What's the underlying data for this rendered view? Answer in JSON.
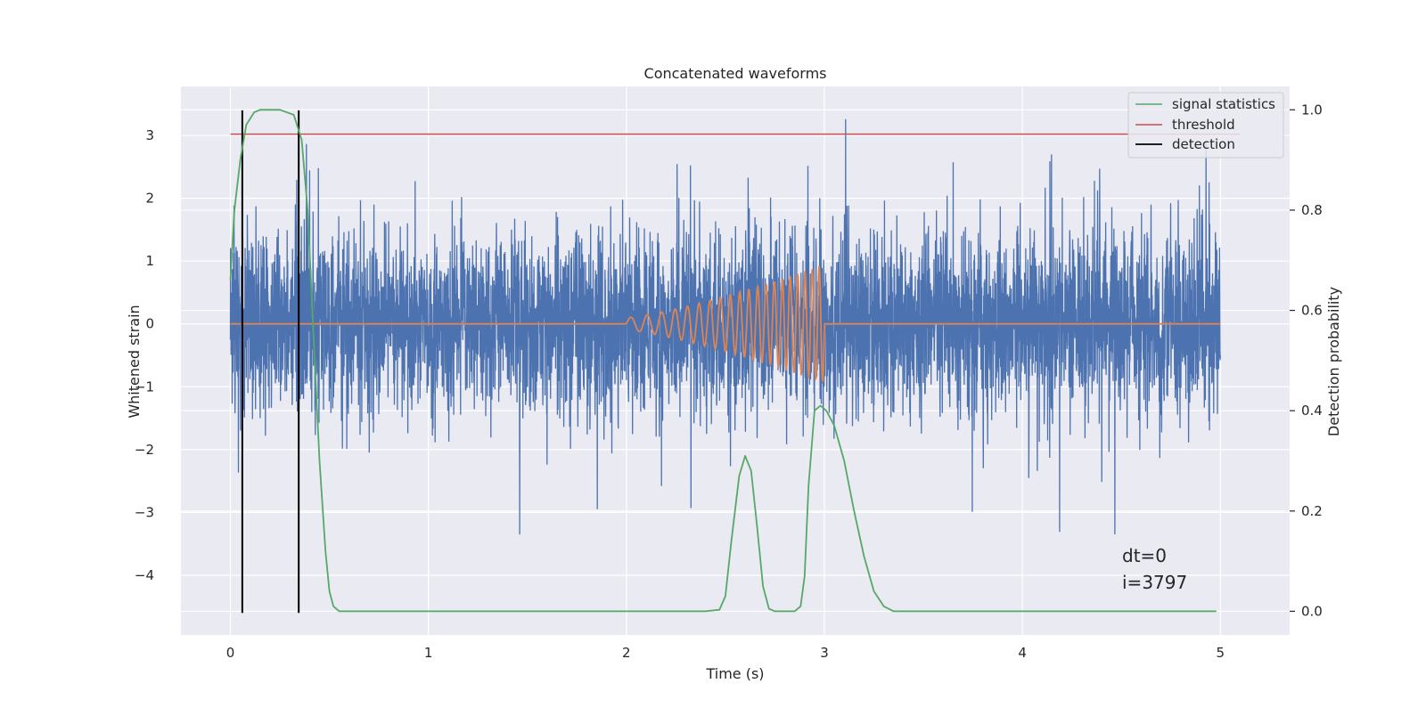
{
  "chart_data": {
    "type": "line",
    "title": "Concatenated waveforms",
    "xlabel": "Time (s)",
    "ylabel": "Whitened strain",
    "y2label": "Detection probability",
    "xlim": [
      -0.25,
      5.35
    ],
    "ylim": [
      -4.95,
      3.78
    ],
    "y2lim": [
      -0.0472,
      1.0467
    ],
    "x_ticks": [
      0,
      1,
      2,
      3,
      4,
      5
    ],
    "x_tick_labels": [
      "0",
      "1",
      "2",
      "3",
      "4",
      "5"
    ],
    "y_ticks": [
      3,
      2,
      1,
      0,
      -1,
      -2,
      -3,
      -4
    ],
    "y_tick_labels": [
      "3",
      "2",
      "1",
      "0",
      "−1",
      "−2",
      "−3",
      "−4"
    ],
    "y2_ticks": [
      1.0,
      0.8,
      0.6,
      0.4,
      0.2,
      0.0
    ],
    "y2_tick_labels": [
      "1.0",
      "0.8",
      "0.6",
      "0.4",
      "0.2",
      "0.0"
    ],
    "grid": true,
    "legend_position": "top-right",
    "series": [
      {
        "name": "",
        "axis": "left",
        "color": "#4c72b0",
        "kind": "noise",
        "x_range": [
          0,
          5
        ],
        "y_typical_range": [
          -1.6,
          1.6
        ],
        "y_extreme_range": [
          -3.35,
          3.4
        ]
      },
      {
        "name": "",
        "axis": "left",
        "color": "#dd8452",
        "kind": "chirp",
        "x_range": [
          0,
          5
        ],
        "chirp_start": 2.0,
        "chirp_end": 3.0,
        "amplitude_start": 0.1,
        "amplitude_end": 0.95
      },
      {
        "name": "signal statistics",
        "axis": "right",
        "color": "#55a868",
        "points": [
          [
            0.0,
            0.66
          ],
          [
            0.02,
            0.8
          ],
          [
            0.05,
            0.9
          ],
          [
            0.08,
            0.97
          ],
          [
            0.12,
            0.995
          ],
          [
            0.15,
            1.0
          ],
          [
            0.25,
            1.0
          ],
          [
            0.32,
            0.99
          ],
          [
            0.36,
            0.94
          ],
          [
            0.39,
            0.8
          ],
          [
            0.42,
            0.55
          ],
          [
            0.45,
            0.3
          ],
          [
            0.48,
            0.12
          ],
          [
            0.5,
            0.04
          ],
          [
            0.52,
            0.01
          ],
          [
            0.55,
            0.0
          ],
          [
            2.4,
            0.0
          ],
          [
            2.47,
            0.003
          ],
          [
            2.5,
            0.03
          ],
          [
            2.53,
            0.14
          ],
          [
            2.57,
            0.27
          ],
          [
            2.6,
            0.31
          ],
          [
            2.63,
            0.28
          ],
          [
            2.66,
            0.17
          ],
          [
            2.69,
            0.05
          ],
          [
            2.72,
            0.005
          ],
          [
            2.75,
            0.0
          ],
          [
            2.85,
            0.0
          ],
          [
            2.88,
            0.01
          ],
          [
            2.9,
            0.07
          ],
          [
            2.92,
            0.25
          ],
          [
            2.95,
            0.4
          ],
          [
            2.98,
            0.41
          ],
          [
            3.01,
            0.4
          ],
          [
            3.05,
            0.37
          ],
          [
            3.1,
            0.3
          ],
          [
            3.15,
            0.2
          ],
          [
            3.2,
            0.11
          ],
          [
            3.25,
            0.04
          ],
          [
            3.3,
            0.01
          ],
          [
            3.35,
            0.0
          ],
          [
            4.98,
            0.0
          ]
        ]
      },
      {
        "name": "threshold",
        "axis": "left",
        "color": "#c44e52",
        "x": [
          0,
          5.1
        ],
        "y": [
          3.02,
          3.02
        ]
      },
      {
        "name": "detection",
        "axis": "left",
        "color": "#000000",
        "x": [
          0.06,
          0.345
        ],
        "y_span": [
          -4.6,
          3.4
        ]
      }
    ],
    "annotation": [
      "dt=0",
      "i=3797"
    ]
  }
}
